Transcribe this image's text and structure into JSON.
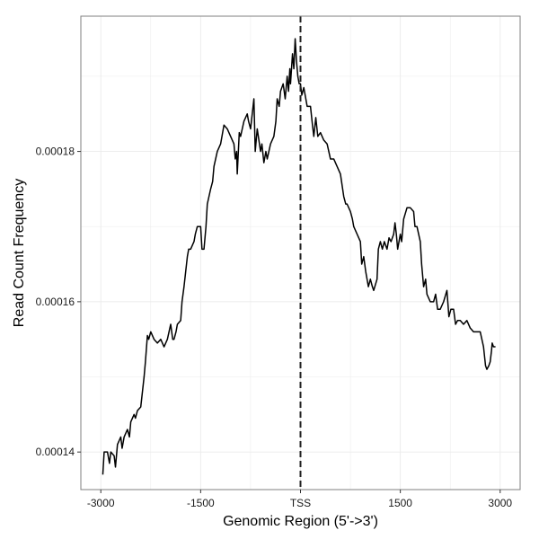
{
  "chart_data": {
    "type": "line",
    "title": "",
    "xlabel": "Genomic Region (5'->3')",
    "ylabel": "Read Count Frequency",
    "xlim": [
      -3300,
      3300
    ],
    "ylim": [
      0.000135,
      0.000198
    ],
    "x_ticks": [
      {
        "value": -3000,
        "label": "-3000"
      },
      {
        "value": -1500,
        "label": "-1500"
      },
      {
        "value": 0,
        "label": "TSS"
      },
      {
        "value": 1500,
        "label": "1500"
      },
      {
        "value": 3000,
        "label": "3000"
      }
    ],
    "y_ticks": [
      {
        "value": 0.00014,
        "label": "0.00014"
      },
      {
        "value": 0.00016,
        "label": "0.00016"
      },
      {
        "value": 0.00018,
        "label": "0.00018"
      }
    ],
    "grid": true,
    "vline": {
      "x": 0,
      "style": "dashed"
    },
    "colors": {
      "line": "#000000",
      "grid": "#ebebeb",
      "panel_border": "#7f7f7f"
    },
    "series": [
      {
        "points": [
          [
            -2970,
            0.000137
          ],
          [
            -2950,
            0.00014
          ],
          [
            -2900,
            0.00014
          ],
          [
            -2870,
            0.0001385
          ],
          [
            -2850,
            0.00014
          ],
          [
            -2800,
            0.0001395
          ],
          [
            -2780,
            0.000138
          ],
          [
            -2750,
            0.000141
          ],
          [
            -2700,
            0.000142
          ],
          [
            -2680,
            0.0001405
          ],
          [
            -2650,
            0.000142
          ],
          [
            -2600,
            0.000143
          ],
          [
            -2570,
            0.000142
          ],
          [
            -2550,
            0.000144
          ],
          [
            -2500,
            0.000145
          ],
          [
            -2480,
            0.0001445
          ],
          [
            -2450,
            0.0001455
          ],
          [
            -2400,
            0.000146
          ],
          [
            -2350,
            0.00015
          ],
          [
            -2330,
            0.000152
          ],
          [
            -2300,
            0.0001555
          ],
          [
            -2280,
            0.000155
          ],
          [
            -2250,
            0.000156
          ],
          [
            -2200,
            0.000155
          ],
          [
            -2150,
            0.0001545
          ],
          [
            -2100,
            0.000155
          ],
          [
            -2050,
            0.000154
          ],
          [
            -2000,
            0.000155
          ],
          [
            -1950,
            0.000157
          ],
          [
            -1920,
            0.000155
          ],
          [
            -1900,
            0.000155
          ],
          [
            -1870,
            0.000156
          ],
          [
            -1850,
            0.000157
          ],
          [
            -1800,
            0.0001575
          ],
          [
            -1780,
            0.00016
          ],
          [
            -1750,
            0.000162
          ],
          [
            -1700,
            0.000166
          ],
          [
            -1680,
            0.000167
          ],
          [
            -1650,
            0.000167
          ],
          [
            -1600,
            0.000168
          ],
          [
            -1580,
            0.000169
          ],
          [
            -1550,
            0.00017
          ],
          [
            -1500,
            0.00017
          ],
          [
            -1480,
            0.000167
          ],
          [
            -1450,
            0.000167
          ],
          [
            -1420,
            0.00017
          ],
          [
            -1400,
            0.000173
          ],
          [
            -1350,
            0.000175
          ],
          [
            -1320,
            0.000176
          ],
          [
            -1300,
            0.000178
          ],
          [
            -1250,
            0.00018
          ],
          [
            -1200,
            0.000181
          ],
          [
            -1150,
            0.0001835
          ],
          [
            -1100,
            0.000183
          ],
          [
            -1050,
            0.000182
          ],
          [
            -1000,
            0.000181
          ],
          [
            -980,
            0.000179
          ],
          [
            -960,
            0.00018
          ],
          [
            -950,
            0.000177
          ],
          [
            -920,
            0.0001825
          ],
          [
            -900,
            0.000182
          ],
          [
            -850,
            0.000184
          ],
          [
            -800,
            0.000185
          ],
          [
            -780,
            0.000184
          ],
          [
            -750,
            0.000183
          ],
          [
            -700,
            0.000187
          ],
          [
            -680,
            0.00018
          ],
          [
            -650,
            0.000183
          ],
          [
            -600,
            0.00018
          ],
          [
            -580,
            0.000181
          ],
          [
            -550,
            0.0001785
          ],
          [
            -520,
            0.00018
          ],
          [
            -500,
            0.000179
          ],
          [
            -450,
            0.000181
          ],
          [
            -400,
            0.000182
          ],
          [
            -370,
            0.000184
          ],
          [
            -350,
            0.000187
          ],
          [
            -320,
            0.000186
          ],
          [
            -300,
            0.000188
          ],
          [
            -260,
            0.000189
          ],
          [
            -230,
            0.000187
          ],
          [
            -200,
            0.00019
          ],
          [
            -180,
            0.000188
          ],
          [
            -160,
            0.000191
          ],
          [
            -150,
            0.000189
          ],
          [
            -120,
            0.000193
          ],
          [
            -100,
            0.000191
          ],
          [
            -80,
            0.000195
          ],
          [
            -60,
            0.000192
          ],
          [
            -40,
            0.00019
          ],
          [
            -20,
            0.000189
          ],
          [
            0,
            0.000189
          ],
          [
            20,
            0.0001875
          ],
          [
            50,
            0.0001885
          ],
          [
            80,
            0.000187
          ],
          [
            100,
            0.000186
          ],
          [
            150,
            0.000186
          ],
          [
            180,
            0.0001835
          ],
          [
            200,
            0.000182
          ],
          [
            230,
            0.0001845
          ],
          [
            260,
            0.000182
          ],
          [
            300,
            0.0001825
          ],
          [
            350,
            0.0001815
          ],
          [
            400,
            0.000181
          ],
          [
            450,
            0.000179
          ],
          [
            500,
            0.000179
          ],
          [
            550,
            0.000178
          ],
          [
            600,
            0.000177
          ],
          [
            650,
            0.000174
          ],
          [
            680,
            0.000173
          ],
          [
            700,
            0.000173
          ],
          [
            750,
            0.000172
          ],
          [
            780,
            0.000171
          ],
          [
            800,
            0.00017
          ],
          [
            850,
            0.000169
          ],
          [
            900,
            0.000168
          ],
          [
            920,
            0.000165
          ],
          [
            950,
            0.000166
          ],
          [
            980,
            0.000164
          ],
          [
            1000,
            0.000163
          ],
          [
            1020,
            0.000162
          ],
          [
            1050,
            0.000163
          ],
          [
            1080,
            0.000162
          ],
          [
            1100,
            0.0001615
          ],
          [
            1150,
            0.000163
          ],
          [
            1170,
            0.000167
          ],
          [
            1200,
            0.000168
          ],
          [
            1230,
            0.000167
          ],
          [
            1260,
            0.000168
          ],
          [
            1300,
            0.000167
          ],
          [
            1330,
            0.0001685
          ],
          [
            1360,
            0.000168
          ],
          [
            1400,
            0.000169
          ],
          [
            1420,
            0.0001705
          ],
          [
            1440,
            0.000169
          ],
          [
            1460,
            0.000167
          ],
          [
            1480,
            0.000168
          ],
          [
            1500,
            0.000169
          ],
          [
            1520,
            0.000168
          ],
          [
            1550,
            0.000171
          ],
          [
            1600,
            0.0001725
          ],
          [
            1650,
            0.0001725
          ],
          [
            1700,
            0.000172
          ],
          [
            1720,
            0.00017
          ],
          [
            1750,
            0.00017
          ],
          [
            1800,
            0.000168
          ],
          [
            1820,
            0.000165
          ],
          [
            1850,
            0.000162
          ],
          [
            1880,
            0.000163
          ],
          [
            1900,
            0.000161
          ],
          [
            1950,
            0.00016
          ],
          [
            2000,
            0.00016
          ],
          [
            2030,
            0.000161
          ],
          [
            2060,
            0.000159
          ],
          [
            2100,
            0.000159
          ],
          [
            2150,
            0.00016
          ],
          [
            2200,
            0.0001615
          ],
          [
            2230,
            0.000158
          ],
          [
            2260,
            0.000159
          ],
          [
            2300,
            0.000159
          ],
          [
            2330,
            0.000157
          ],
          [
            2360,
            0.0001575
          ],
          [
            2400,
            0.0001575
          ],
          [
            2450,
            0.000157
          ],
          [
            2500,
            0.0001575
          ],
          [
            2550,
            0.0001565
          ],
          [
            2600,
            0.000156
          ],
          [
            2650,
            0.000156
          ],
          [
            2700,
            0.000156
          ],
          [
            2750,
            0.000154
          ],
          [
            2780,
            0.0001515
          ],
          [
            2800,
            0.000151
          ],
          [
            2830,
            0.0001515
          ],
          [
            2850,
            0.000152
          ],
          [
            2870,
            0.0001535
          ],
          [
            2880,
            0.0001545
          ],
          [
            2900,
            0.000154
          ],
          [
            2930,
            0.000154
          ]
        ]
      }
    ]
  }
}
